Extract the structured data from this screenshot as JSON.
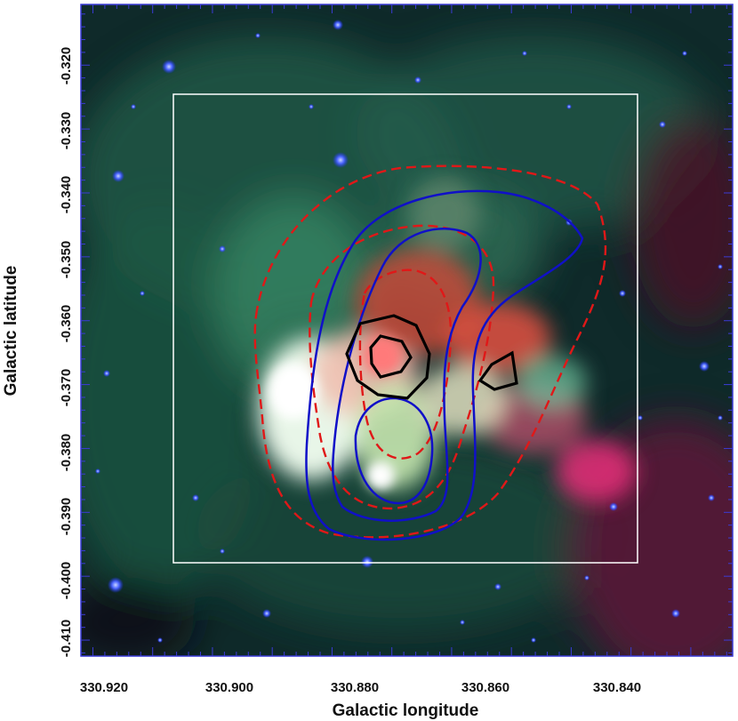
{
  "figure": {
    "xlabel": "Galactic longitude",
    "ylabel": "Galactic latitude",
    "x_ticks": [
      "330.920",
      "330.900",
      "330.880",
      "330.860",
      "330.840"
    ],
    "y_ticks": [
      "-0.320",
      "-0.330",
      "-0.340",
      "-0.350",
      "-0.360",
      "-0.370",
      "-0.380",
      "-0.390",
      "-0.400",
      "-0.410"
    ],
    "x_range": [
      330.932,
      330.823
    ],
    "y_range": [
      -0.3105,
      -0.4125
    ],
    "colors": {
      "frame": "#3b3bd6",
      "box": "#ffffff",
      "contour_red": "#e01818",
      "contour_blue": "#1010c8",
      "contour_black": "#000000"
    }
  }
}
